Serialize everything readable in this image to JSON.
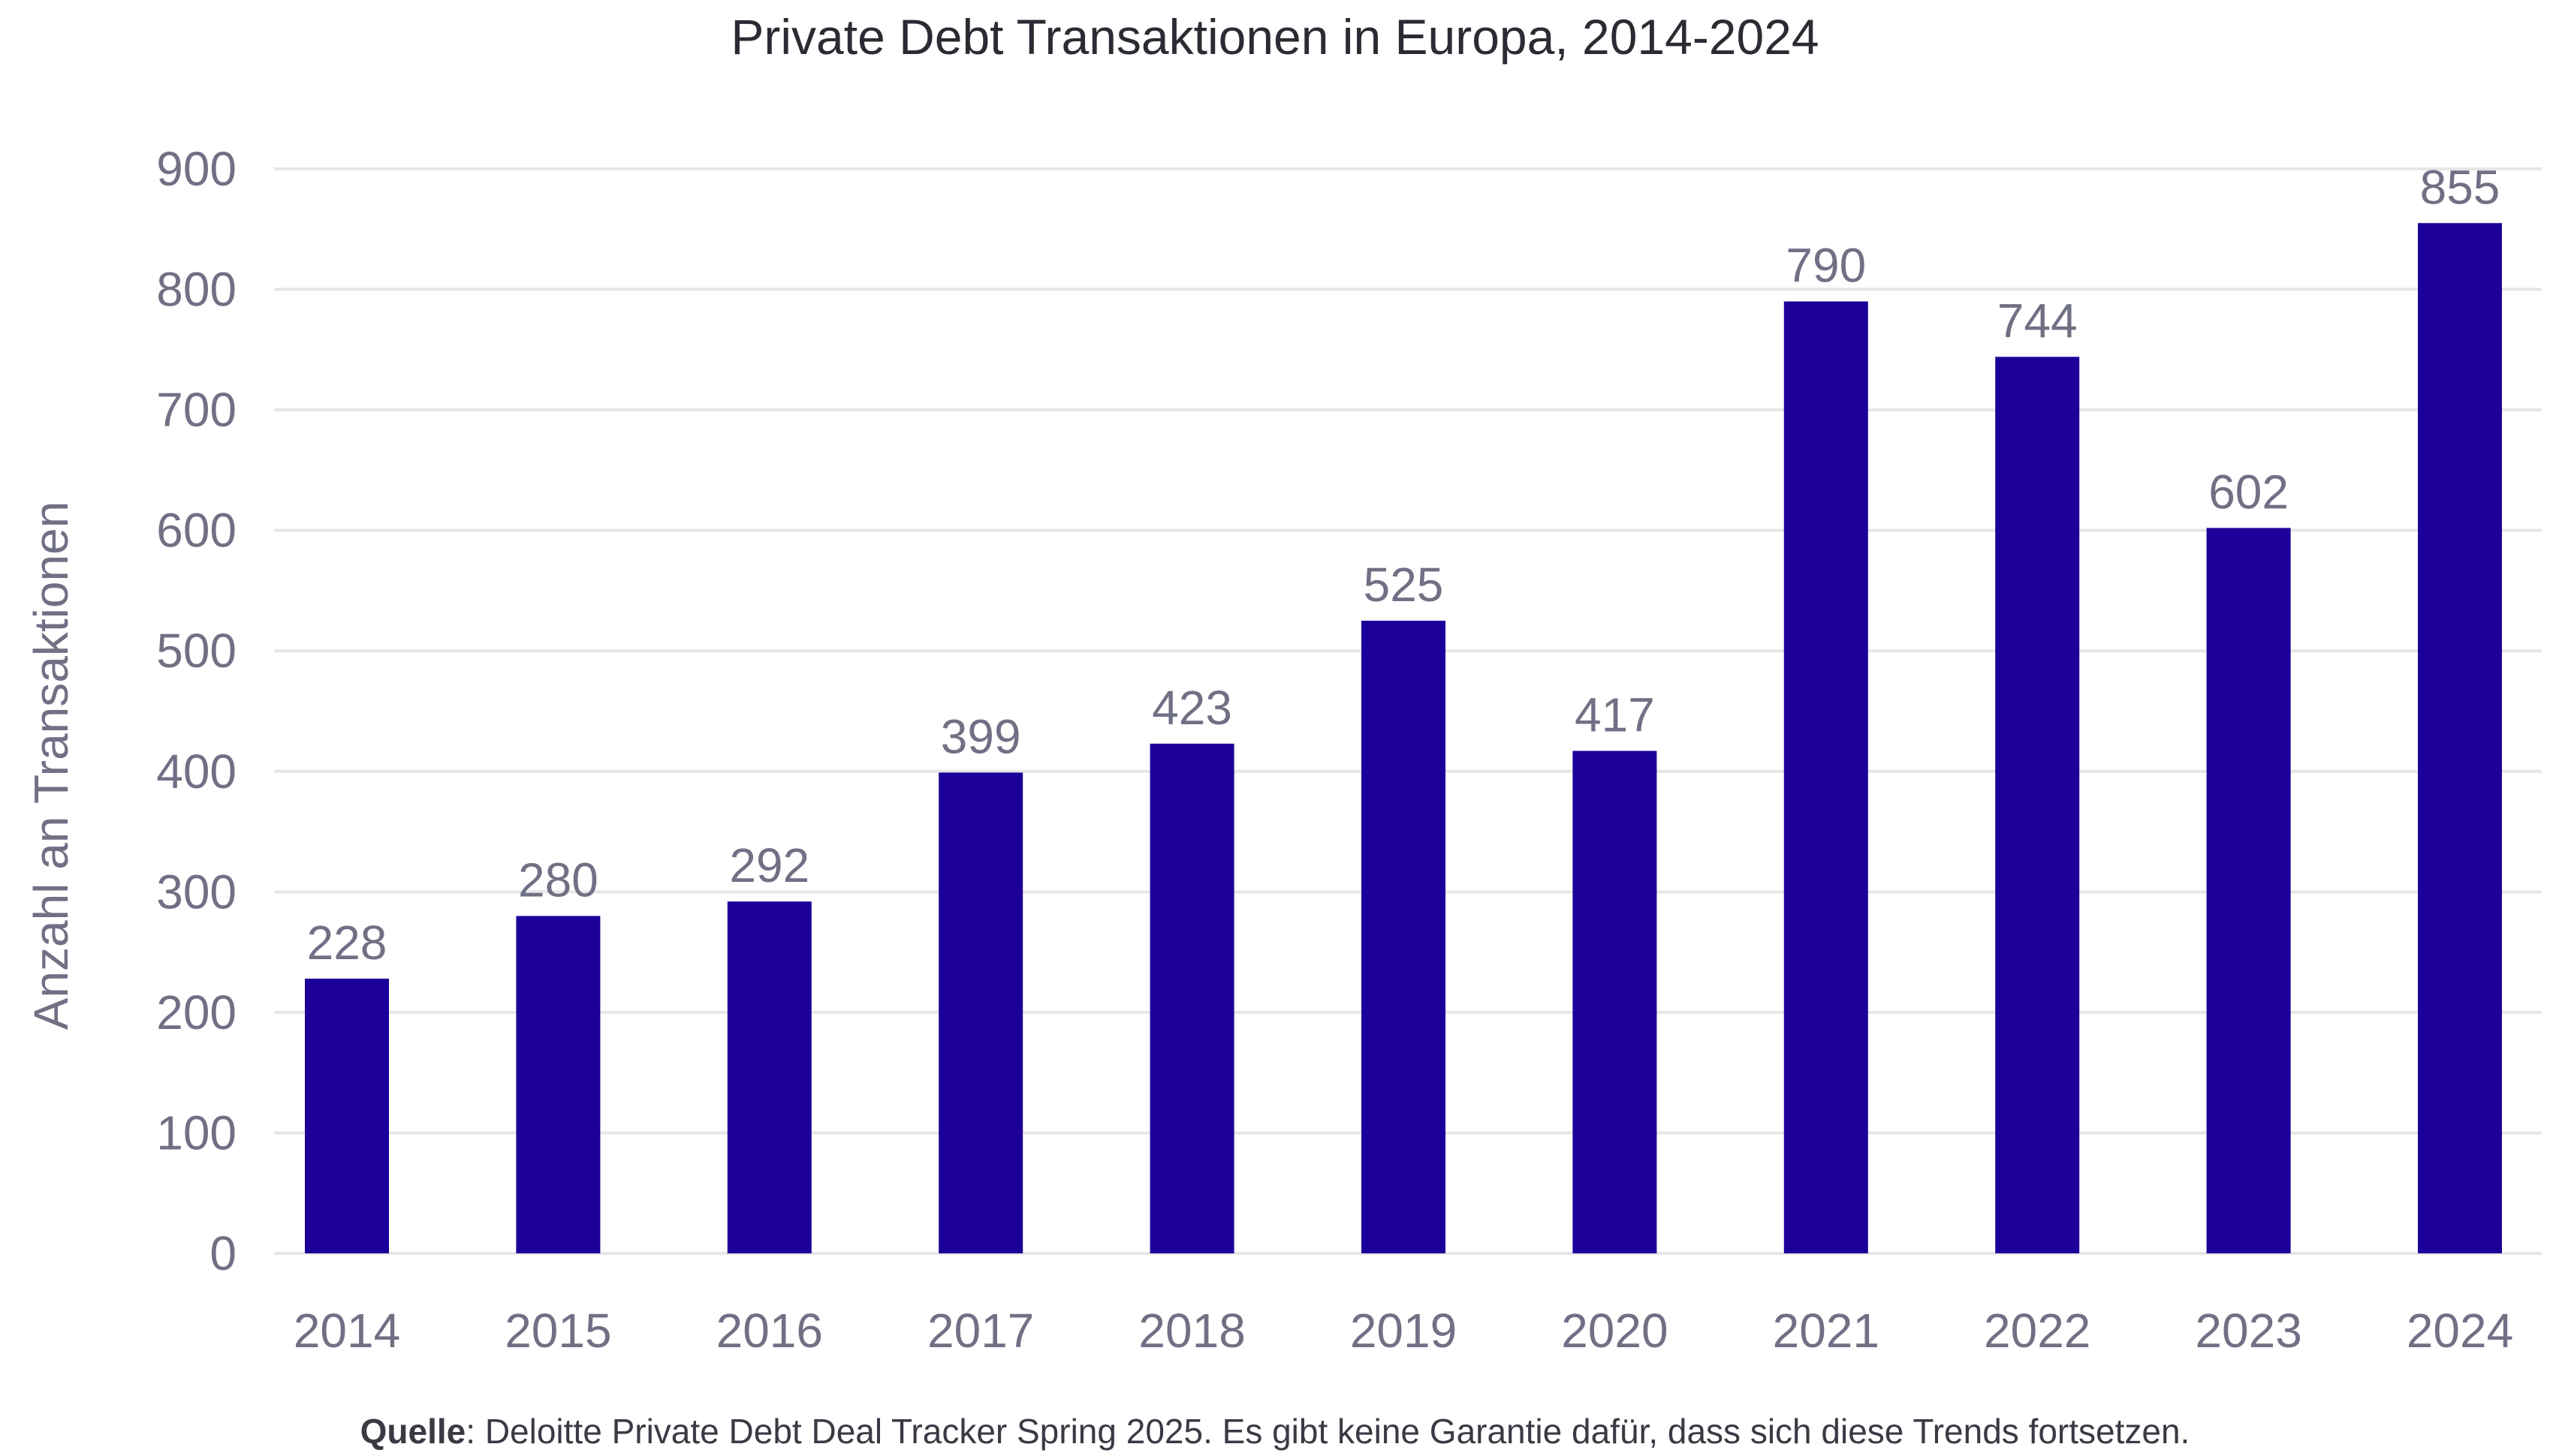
{
  "chart_data": {
    "type": "bar",
    "title": "Private Debt Transaktionen in Europa, 2014-2024",
    "xlabel": "",
    "ylabel": "Anzahl an Transaktionen",
    "categories": [
      "2014",
      "2015",
      "2016",
      "2017",
      "2018",
      "2019",
      "2020",
      "2021",
      "2022",
      "2023",
      "2024"
    ],
    "values": [
      228,
      280,
      292,
      399,
      423,
      525,
      417,
      790,
      744,
      602,
      855
    ],
    "y_ticks": [
      "0",
      "100",
      "200",
      "300",
      "400",
      "500",
      "600",
      "700",
      "800",
      "900"
    ],
    "ylim": [
      0,
      900
    ],
    "grid": true,
    "legend": "none",
    "bar_color": "#1d0099"
  },
  "source": {
    "label": "Quelle",
    "text": ": Deloitte Private Debt Deal Tracker Spring 2025. Es gibt keine Garantie dafür, dass sich diese Trends fortsetzen."
  },
  "colors": {
    "bar": "#1d0099",
    "grid": "#e6e6e6",
    "tick_text": "#707085",
    "title_text": "#2b2b33"
  }
}
